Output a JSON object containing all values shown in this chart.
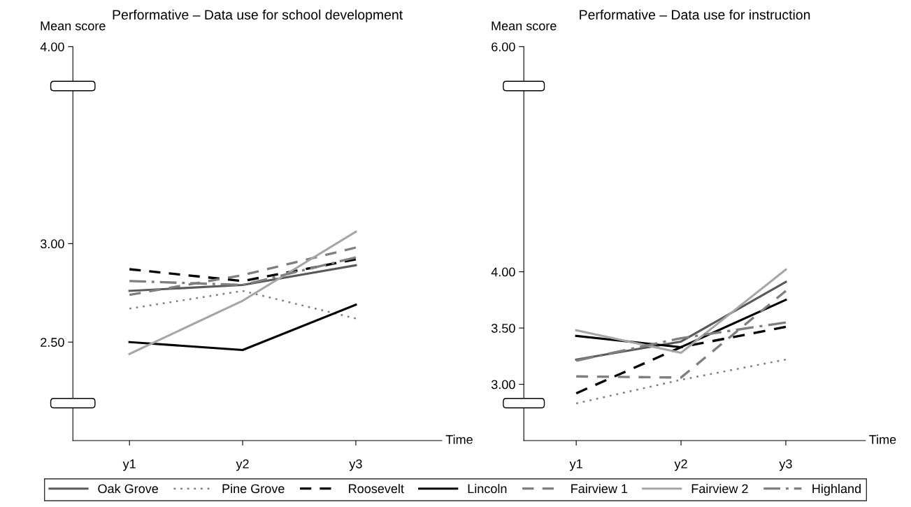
{
  "chart_data": [
    {
      "type": "line",
      "title": "Performative – Data use for school development",
      "ylabel": "Mean score",
      "xlabel": "Time",
      "categories": [
        "y1",
        "y2",
        "y3"
      ],
      "ylim": [
        2.0,
        4.0
      ],
      "yticks": [
        {
          "value": 2.5,
          "label": "2.50"
        },
        {
          "value": 3.0,
          "label": "3.00"
        },
        {
          "value": 4.0,
          "label": "4.00"
        }
      ],
      "legend": "bottom",
      "series": [
        {
          "name": "Oak Grove",
          "color": "#595959",
          "line_style": "solid",
          "values": [
            2.76,
            2.79,
            2.89
          ]
        },
        {
          "name": "Pine Grove",
          "color": "#7f7f7f",
          "line_style": "dotted",
          "values": [
            2.67,
            2.76,
            2.62
          ]
        },
        {
          "name": "Roosevelt",
          "color": "#000000",
          "line_style": "dashed",
          "values": [
            2.87,
            2.81,
            2.92
          ]
        },
        {
          "name": "Lincoln",
          "color": "#000000",
          "line_style": "solid",
          "values": [
            2.5,
            2.46,
            2.69
          ]
        },
        {
          "name": "Fairview 1",
          "color": "#7f7f7f",
          "line_style": "dashed",
          "values": [
            2.74,
            2.84,
            2.98
          ]
        },
        {
          "name": "Fairview 2",
          "color": "#a6a6a6",
          "line_style": "solid",
          "values": [
            2.44,
            2.71,
            3.06
          ]
        },
        {
          "name": "Highland",
          "color": "#7f7f7f",
          "line_style": "dashdot",
          "values": [
            2.81,
            2.79,
            2.93
          ]
        }
      ]
    },
    {
      "type": "line",
      "title": "Performative – Data use for instruction",
      "ylabel": "Mean score",
      "xlabel": "Time",
      "categories": [
        "y1",
        "y2",
        "y3"
      ],
      "ylim": [
        2.5,
        6.0
      ],
      "yticks": [
        {
          "value": 3.0,
          "label": "3.00"
        },
        {
          "value": 3.5,
          "label": "3.50"
        },
        {
          "value": 4.0,
          "label": "4.00"
        },
        {
          "value": 6.0,
          "label": "6.00"
        }
      ],
      "series": [
        {
          "color": "#595959",
          "line_style": "solid",
          "values": [
            3.22,
            3.38,
            3.91
          ]
        },
        {
          "color": "#7f7f7f",
          "line_style": "dotted",
          "values": [
            2.83,
            3.04,
            3.22
          ]
        },
        {
          "color": "#000000",
          "line_style": "dashed",
          "values": [
            2.92,
            3.33,
            3.51
          ]
        },
        {
          "color": "#000000",
          "line_style": "solid",
          "values": [
            3.43,
            3.33,
            3.75
          ]
        },
        {
          "color": "#7f7f7f",
          "line_style": "dashed",
          "values": [
            3.07,
            3.06,
            3.83
          ]
        },
        {
          "color": "#a6a6a6",
          "line_style": "solid",
          "values": [
            3.48,
            3.28,
            4.02
          ]
        },
        {
          "color": "#7f7f7f",
          "line_style": "dashdot",
          "values": [
            3.21,
            3.41,
            3.55
          ]
        }
      ]
    }
  ]
}
